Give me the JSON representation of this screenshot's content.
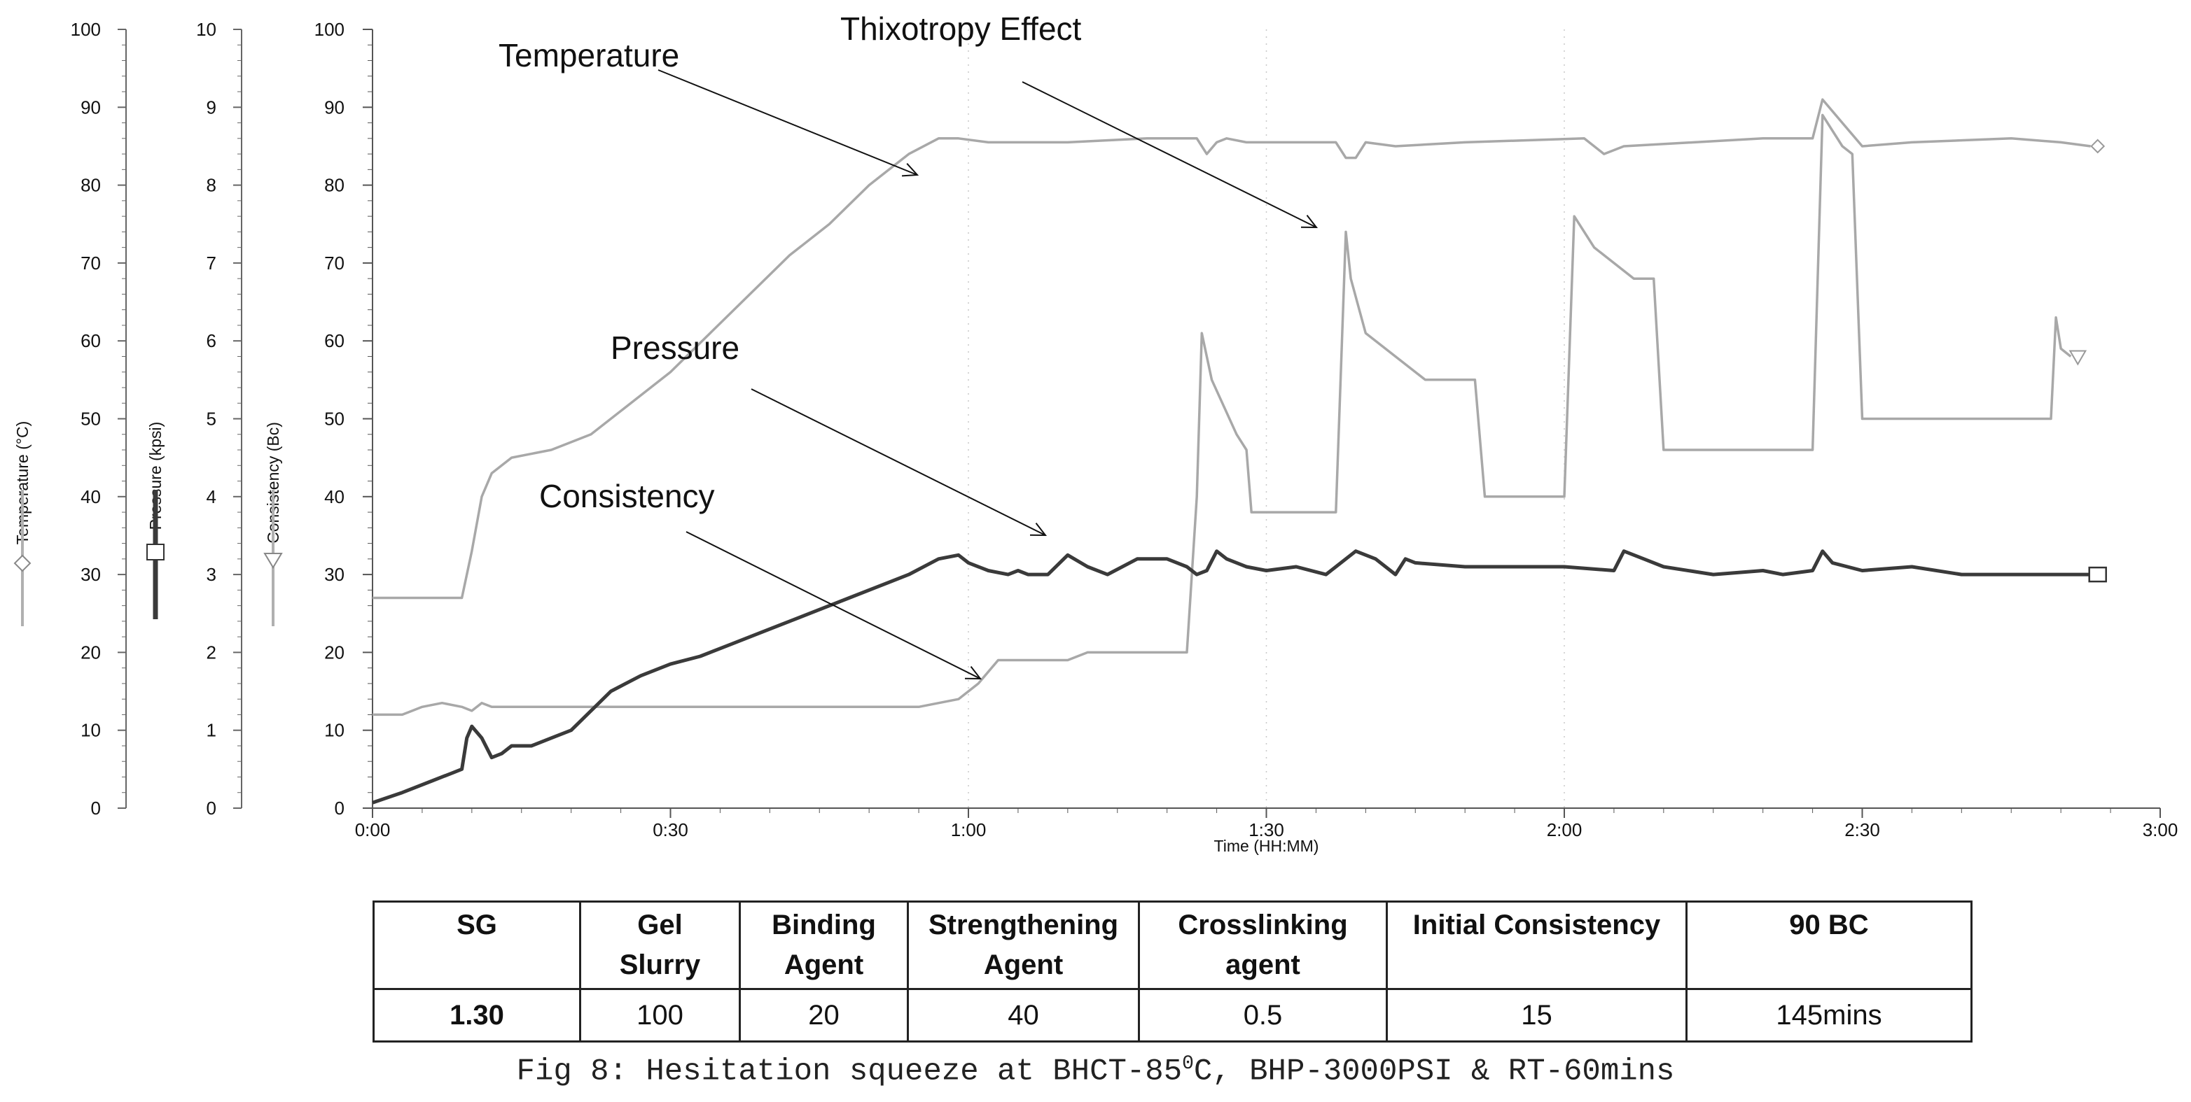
{
  "chart_data": {
    "type": "line",
    "x_axis": {
      "label": "Time (HH:MM)",
      "ticks": [
        "0:00",
        "0:30",
        "1:00",
        "1:30",
        "2:00",
        "2:30",
        "3:00"
      ],
      "range_minutes": [
        0,
        180
      ]
    },
    "y_axes": [
      {
        "name": "Temperature (°C)",
        "ticks": [
          "0",
          "10",
          "20",
          "30",
          "40",
          "50",
          "60",
          "70",
          "80",
          "90",
          "100"
        ],
        "range": [
          0,
          100
        ]
      },
      {
        "name": "Pressure (kpsi)",
        "ticks": [
          "0",
          "1",
          "2",
          "3",
          "4",
          "5",
          "6",
          "7",
          "8",
          "9",
          "10"
        ],
        "range": [
          0,
          10
        ]
      },
      {
        "name": "Consistency (Bc)",
        "ticks": [
          "0",
          "10",
          "20",
          "30",
          "40",
          "50",
          "60",
          "70",
          "80",
          "90",
          "100"
        ],
        "range": [
          0,
          100
        ]
      }
    ],
    "main_axis_ticks": [
      "0",
      "10",
      "20",
      "30",
      "40",
      "50",
      "60",
      "70",
      "80",
      "90",
      "100"
    ],
    "series": [
      {
        "name": "Temperature",
        "color": "#a8a8a8",
        "end_marker": "diamond",
        "points": [
          [
            0,
            27
          ],
          [
            9,
            27
          ],
          [
            10,
            33
          ],
          [
            11,
            40
          ],
          [
            12,
            43
          ],
          [
            14,
            45
          ],
          [
            18,
            46
          ],
          [
            22,
            48
          ],
          [
            26,
            52
          ],
          [
            30,
            56
          ],
          [
            34,
            61
          ],
          [
            38,
            66
          ],
          [
            42,
            71
          ],
          [
            46,
            75
          ],
          [
            50,
            80
          ],
          [
            54,
            84
          ],
          [
            57,
            86
          ],
          [
            59,
            86
          ],
          [
            62,
            85.5
          ],
          [
            70,
            85.5
          ],
          [
            78,
            86
          ],
          [
            83,
            86
          ],
          [
            84,
            84
          ],
          [
            85,
            85.5
          ],
          [
            86,
            86
          ],
          [
            88,
            85.5
          ],
          [
            97,
            85.5
          ],
          [
            98,
            83.5
          ],
          [
            99,
            83.5
          ],
          [
            100,
            85.5
          ],
          [
            103,
            85
          ],
          [
            110,
            85.5
          ],
          [
            122,
            86
          ],
          [
            124,
            84
          ],
          [
            126,
            85
          ],
          [
            140,
            86
          ],
          [
            145,
            86
          ],
          [
            146,
            91
          ],
          [
            148,
            88
          ],
          [
            150,
            85
          ],
          [
            155,
            85.5
          ],
          [
            165,
            86
          ],
          [
            170,
            85.5
          ],
          [
            173,
            85
          ]
        ]
      },
      {
        "name": "Thixotropy Effect",
        "color": "#a8a8a8",
        "end_marker": "triangle-down",
        "points": [
          [
            0,
            12
          ],
          [
            3,
            12
          ],
          [
            5,
            13
          ],
          [
            7,
            13.5
          ],
          [
            9,
            13
          ],
          [
            10,
            12.5
          ],
          [
            11,
            13.5
          ],
          [
            12,
            13
          ],
          [
            20,
            13
          ],
          [
            40,
            13
          ],
          [
            55,
            13
          ],
          [
            59,
            14
          ],
          [
            61,
            16
          ],
          [
            63,
            19
          ],
          [
            70,
            19
          ],
          [
            72,
            20
          ],
          [
            82,
            20
          ],
          [
            83,
            40
          ],
          [
            83.5,
            61
          ],
          [
            84.5,
            55
          ],
          [
            87,
            48
          ],
          [
            88,
            46
          ],
          [
            88.5,
            38
          ],
          [
            97,
            38
          ],
          [
            98,
            74
          ],
          [
            98.5,
            68
          ],
          [
            100,
            61
          ],
          [
            103,
            58
          ],
          [
            105,
            56
          ],
          [
            106,
            55
          ],
          [
            111,
            55
          ],
          [
            112,
            40
          ],
          [
            120,
            40
          ],
          [
            121,
            76
          ],
          [
            123,
            72
          ],
          [
            125,
            70
          ],
          [
            127,
            68
          ],
          [
            129,
            68
          ],
          [
            130,
            46
          ],
          [
            145,
            46
          ],
          [
            146,
            89
          ],
          [
            147,
            87
          ],
          [
            148,
            85
          ],
          [
            149,
            84
          ],
          [
            150,
            50
          ],
          [
            161,
            50
          ],
          [
            168,
            50
          ],
          [
            169,
            50
          ],
          [
            169.5,
            63
          ],
          [
            170,
            59
          ],
          [
            171,
            58
          ]
        ]
      },
      {
        "name": "Pressure",
        "color": "#3a3a3a",
        "end_marker": "square",
        "points": [
          [
            0,
            0.7
          ],
          [
            3,
            2
          ],
          [
            6,
            3.5
          ],
          [
            8,
            4.5
          ],
          [
            9,
            5
          ],
          [
            9.5,
            9
          ],
          [
            10,
            10.5
          ],
          [
            11,
            9
          ],
          [
            12,
            6.5
          ],
          [
            13,
            7
          ],
          [
            14,
            8
          ],
          [
            16,
            8
          ],
          [
            18,
            9
          ],
          [
            20,
            10
          ],
          [
            22,
            12.5
          ],
          [
            24,
            15
          ],
          [
            27,
            17
          ],
          [
            30,
            18.5
          ],
          [
            33,
            19.5
          ],
          [
            36,
            21
          ],
          [
            39,
            22.5
          ],
          [
            42,
            24
          ],
          [
            45,
            25.5
          ],
          [
            48,
            27
          ],
          [
            51,
            28.5
          ],
          [
            54,
            30
          ],
          [
            57,
            32
          ],
          [
            59,
            32.5
          ],
          [
            60,
            31.5
          ],
          [
            62,
            30.5
          ],
          [
            64,
            30
          ],
          [
            65,
            30.5
          ],
          [
            66,
            30
          ],
          [
            68,
            30
          ],
          [
            70,
            32.5
          ],
          [
            72,
            31
          ],
          [
            74,
            30
          ],
          [
            77,
            32
          ],
          [
            80,
            32
          ],
          [
            82,
            31
          ],
          [
            83,
            30
          ],
          [
            84,
            30.5
          ],
          [
            85,
            33
          ],
          [
            86,
            32
          ],
          [
            88,
            31
          ],
          [
            90,
            30.5
          ],
          [
            93,
            31
          ],
          [
            96,
            30
          ],
          [
            99,
            33
          ],
          [
            101,
            32
          ],
          [
            103,
            30
          ],
          [
            104,
            32
          ],
          [
            105,
            31.5
          ],
          [
            110,
            31
          ],
          [
            120,
            31
          ],
          [
            125,
            30.5
          ],
          [
            126,
            33
          ],
          [
            128,
            32
          ],
          [
            130,
            31
          ],
          [
            135,
            30
          ],
          [
            140,
            30.5
          ],
          [
            142,
            30
          ],
          [
            145,
            30.5
          ],
          [
            146,
            33
          ],
          [
            147,
            31.5
          ],
          [
            150,
            30.5
          ],
          [
            155,
            31
          ],
          [
            160,
            30
          ],
          [
            170,
            30
          ],
          [
            173,
            30
          ]
        ]
      }
    ],
    "annotations": [
      "Temperature",
      "Thixotropy Effect",
      "Pressure",
      "Consistency"
    ],
    "grid": false
  },
  "table": {
    "headers": [
      [
        "SG"
      ],
      [
        "Gel",
        "Slurry"
      ],
      [
        "Binding",
        "Agent"
      ],
      [
        "Strengthening",
        "Agent"
      ],
      [
        "Crosslinking",
        "agent"
      ],
      [
        "Initial Consistency"
      ],
      [
        "90 BC"
      ]
    ],
    "values": [
      "1.30",
      "100",
      "20",
      "40",
      "0.5",
      "15",
      "145mins"
    ]
  },
  "caption": {
    "prefix": "Fig 8: Hesitation squeeze at BHCT-85",
    "superscript": "0",
    "suffix": "C, BHP-3000PSI & RT-60mins"
  }
}
